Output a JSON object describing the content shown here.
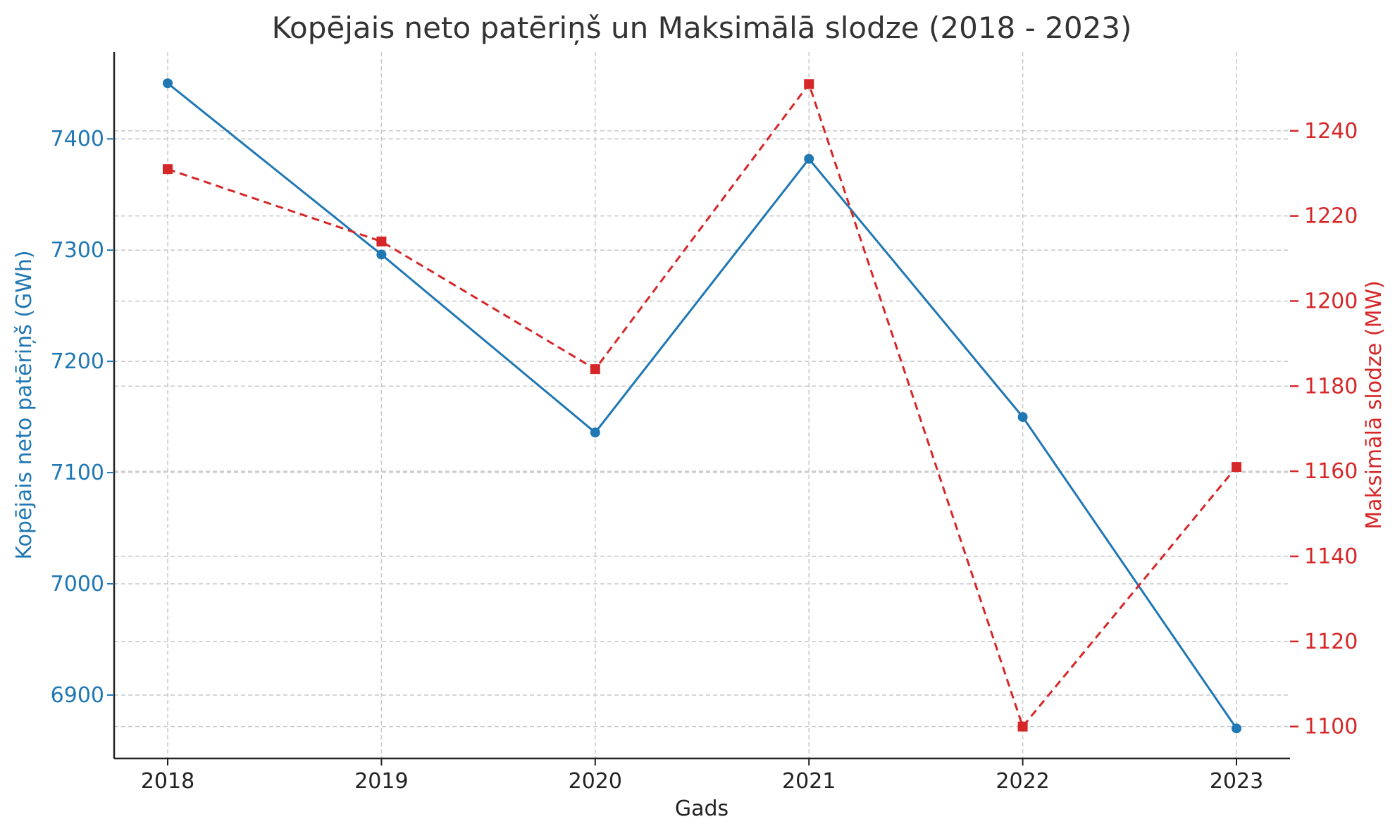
{
  "chart_data": {
    "type": "line",
    "title": "Kopējais neto patēriņš un Maksimālā slodze (2018 - 2023)",
    "xlabel": "Gads",
    "categories": [
      "2018",
      "2019",
      "2020",
      "2021",
      "2022",
      "2023"
    ],
    "y_left": {
      "label": "Kopējais neto patēriņš (GWh)",
      "color": "#1f77b4",
      "ylim": [
        6843,
        7478
      ],
      "ticks": [
        6900,
        7000,
        7100,
        7200,
        7300,
        7400
      ]
    },
    "y_right": {
      "label": "Maksimālā slodze (MW)",
      "color": "#d62728",
      "ylim": [
        1092.5,
        1258.5
      ],
      "ticks": [
        1100,
        1120,
        1140,
        1160,
        1180,
        1200,
        1220,
        1240
      ]
    },
    "series": [
      {
        "axis": "left",
        "color": "#1f77b4",
        "line_style": "solid",
        "marker": "circle",
        "values": [
          7450,
          7296,
          7136,
          7382,
          7150,
          6870
        ]
      },
      {
        "axis": "right",
        "color": "#d62728",
        "line_style": "dashed",
        "marker": "square",
        "values": [
          1231,
          1214,
          1184,
          1251,
          1100,
          1161
        ]
      }
    ],
    "grid": true
  }
}
